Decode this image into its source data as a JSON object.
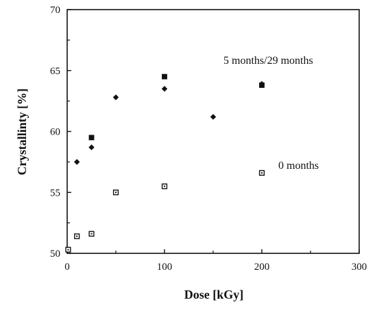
{
  "chart_data": {
    "type": "scatter",
    "title": "",
    "xlabel": "Dose  [kGy]",
    "ylabel": "Crystallinty  [%]",
    "xlim": [
      0,
      300
    ],
    "ylim": [
      50,
      70
    ],
    "xticks": [
      "0",
      "100",
      "200",
      "300"
    ],
    "yticks": [
      "50",
      "55",
      "60",
      "65",
      "70"
    ],
    "grid": false,
    "annotations": [
      "5 months/29 months",
      "0 months"
    ],
    "series": [
      {
        "marker": "filled-diamond",
        "x": [
          10,
          25,
          50,
          100,
          150,
          200
        ],
        "y": [
          57.5,
          58.7,
          62.8,
          63.5,
          61.2,
          63.9
        ]
      },
      {
        "marker": "filled-square",
        "x": [
          25,
          100,
          200
        ],
        "y": [
          59.5,
          64.5,
          63.8
        ]
      },
      {
        "marker": "open-square",
        "x": [
          1,
          10,
          25,
          50,
          100,
          200
        ],
        "y": [
          50.3,
          51.4,
          51.6,
          55.0,
          55.5,
          56.6
        ]
      }
    ]
  }
}
